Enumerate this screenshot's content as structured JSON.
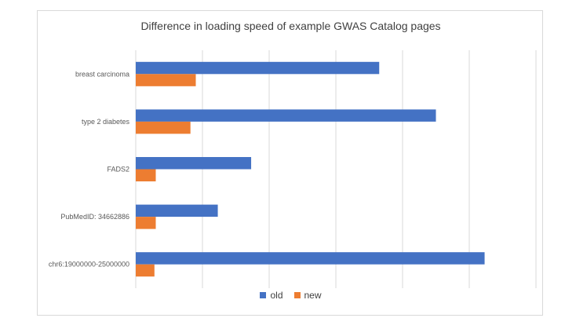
{
  "chart_data": {
    "type": "bar",
    "orientation": "horizontal",
    "title": "Difference in loading speed of example GWAS Catalog pages",
    "categories": [
      "breast carcinoma",
      "type 2 diabetes",
      "FADS2",
      "PubMedID: 34662886",
      "chr6:19000000-25000000"
    ],
    "series": [
      {
        "name": "old",
        "color": "#4472C4",
        "values": [
          3.65,
          4.5,
          1.73,
          1.23,
          5.23
        ]
      },
      {
        "name": "new",
        "color": "#ED7D31",
        "values": [
          0.9,
          0.82,
          0.3,
          0.3,
          0.28
        ]
      }
    ],
    "xlim": [
      0,
      6
    ],
    "xticks_shown": false,
    "grid": true,
    "legend_position": "bottom"
  }
}
